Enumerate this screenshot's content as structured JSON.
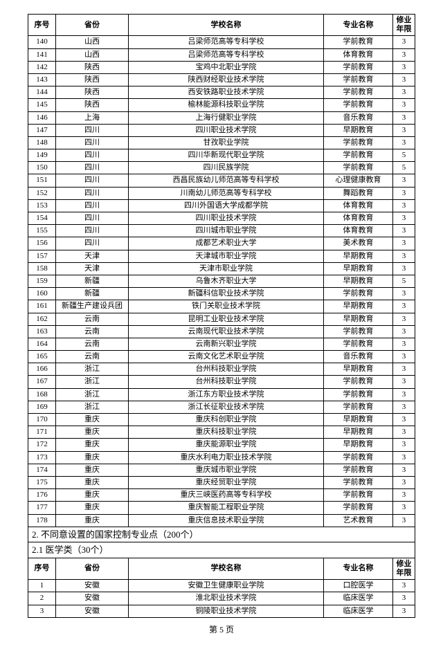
{
  "headers": {
    "seq": "序号",
    "province": "省份",
    "school": "学校名称",
    "major": "专业名称",
    "years": "修业年限"
  },
  "rows1": [
    [
      "140",
      "山西",
      "吕梁师范高等专科学校",
      "学前教育",
      "3"
    ],
    [
      "141",
      "山西",
      "吕梁师范高等专科学校",
      "体育教育",
      "3"
    ],
    [
      "142",
      "陕西",
      "宝鸡中北职业学院",
      "学前教育",
      "3"
    ],
    [
      "143",
      "陕西",
      "陕西财经职业技术学院",
      "学前教育",
      "3"
    ],
    [
      "144",
      "陕西",
      "西安铁路职业技术学院",
      "学前教育",
      "3"
    ],
    [
      "145",
      "陕西",
      "榆林能源科技职业学院",
      "学前教育",
      "3"
    ],
    [
      "146",
      "上海",
      "上海行健职业学院",
      "音乐教育",
      "3"
    ],
    [
      "147",
      "四川",
      "四川职业技术学院",
      "早期教育",
      "3"
    ],
    [
      "148",
      "四川",
      "甘孜职业学院",
      "学前教育",
      "3"
    ],
    [
      "149",
      "四川",
      "四川华新现代职业学院",
      "学前教育",
      "5"
    ],
    [
      "150",
      "四川",
      "四川民族学院",
      "学前教育",
      "5"
    ],
    [
      "151",
      "四川",
      "西昌民族幼儿师范高等专科学校",
      "心理健康教育",
      "3"
    ],
    [
      "152",
      "四川",
      "川南幼儿师范高等专科学校",
      "舞蹈教育",
      "3"
    ],
    [
      "153",
      "四川",
      "四川外国语大学成都学院",
      "体育教育",
      "3"
    ],
    [
      "154",
      "四川",
      "四川职业技术学院",
      "体育教育",
      "3"
    ],
    [
      "155",
      "四川",
      "四川城市职业学院",
      "体育教育",
      "3"
    ],
    [
      "156",
      "四川",
      "成都艺术职业大学",
      "美术教育",
      "3"
    ],
    [
      "157",
      "天津",
      "天津城市职业学院",
      "早期教育",
      "3"
    ],
    [
      "158",
      "天津",
      "天津市职业学院",
      "早期教育",
      "3"
    ],
    [
      "159",
      "新疆",
      "乌鲁木齐职业大学",
      "早期教育",
      "5"
    ],
    [
      "160",
      "新疆",
      "新疆科信职业技术学院",
      "学前教育",
      "3"
    ],
    [
      "161",
      "新疆生产建设兵团",
      "铁门关职业技术学院",
      "早期教育",
      "3"
    ],
    [
      "162",
      "云南",
      "昆明工业职业技术学院",
      "早期教育",
      "3"
    ],
    [
      "163",
      "云南",
      "云南现代职业技术学院",
      "学前教育",
      "3"
    ],
    [
      "164",
      "云南",
      "云南新兴职业学院",
      "学前教育",
      "3"
    ],
    [
      "165",
      "云南",
      "云南文化艺术职业学院",
      "音乐教育",
      "3"
    ],
    [
      "166",
      "浙江",
      "台州科技职业学院",
      "早期教育",
      "3"
    ],
    [
      "167",
      "浙江",
      "台州科技职业学院",
      "学前教育",
      "3"
    ],
    [
      "168",
      "浙江",
      "浙江东方职业技术学院",
      "学前教育",
      "3"
    ],
    [
      "169",
      "浙江",
      "浙江长征职业技术学院",
      "学前教育",
      "3"
    ],
    [
      "170",
      "重庆",
      "重庆科创职业学院",
      "早期教育",
      "3"
    ],
    [
      "171",
      "重庆",
      "重庆科技职业学院",
      "早期教育",
      "3"
    ],
    [
      "172",
      "重庆",
      "重庆能源职业学院",
      "早期教育",
      "3"
    ],
    [
      "173",
      "重庆",
      "重庆水利电力职业技术学院",
      "学前教育",
      "3"
    ],
    [
      "174",
      "重庆",
      "重庆城市职业学院",
      "学前教育",
      "3"
    ],
    [
      "175",
      "重庆",
      "重庆经贸职业学院",
      "学前教育",
      "3"
    ],
    [
      "176",
      "重庆",
      "重庆三峡医药高等专科学校",
      "学前教育",
      "3"
    ],
    [
      "177",
      "重庆",
      "重庆智能工程职业学院",
      "学前教育",
      "3"
    ],
    [
      "178",
      "重庆",
      "重庆信息技术职业学院",
      "艺术教育",
      "3"
    ]
  ],
  "section2": "2. 不同意设置的国家控制专业点（200个）",
  "section21": "2.1 医学类（30个）",
  "rows2": [
    [
      "1",
      "安徽",
      "安徽卫生健康职业学院",
      "口腔医学",
      "3"
    ],
    [
      "2",
      "安徽",
      "淮北职业技术学院",
      "临床医学",
      "3"
    ],
    [
      "3",
      "安徽",
      "铜陵职业技术学院",
      "临床医学",
      "3"
    ]
  ],
  "footer": "第 5 页"
}
